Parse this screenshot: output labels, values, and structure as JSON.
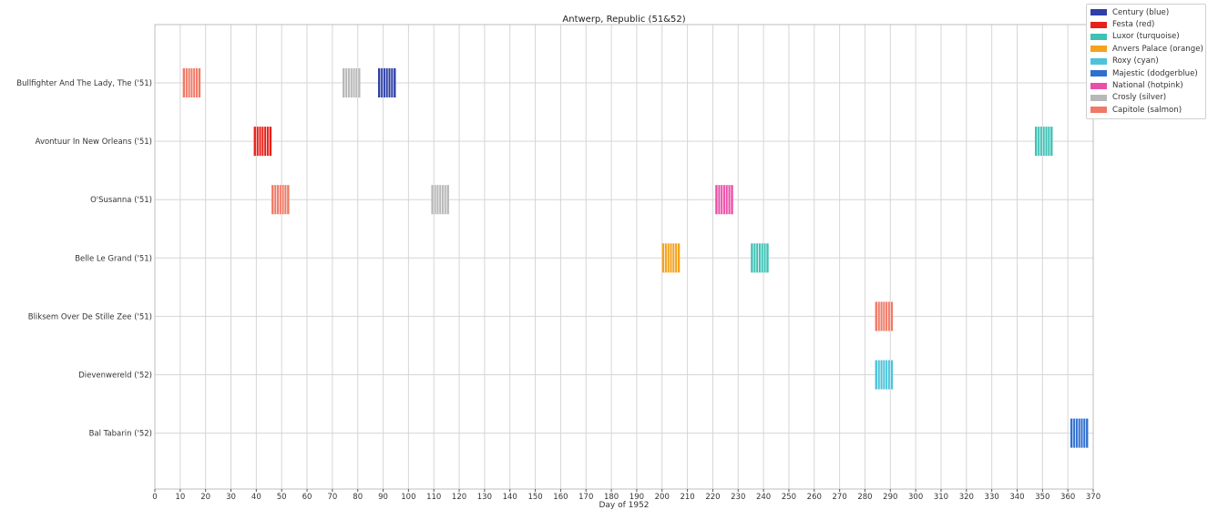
{
  "chart_data": {
    "type": "gantt",
    "title": "Antwerp, Republic (51&52)",
    "xlabel": "Day of 1952",
    "ylabel": "",
    "xlim": [
      0,
      370
    ],
    "xticks": [
      0,
      10,
      20,
      30,
      40,
      50,
      60,
      70,
      80,
      90,
      100,
      110,
      120,
      130,
      140,
      150,
      160,
      170,
      180,
      190,
      200,
      210,
      220,
      230,
      240,
      250,
      260,
      270,
      280,
      290,
      300,
      310,
      320,
      330,
      340,
      350,
      360,
      370
    ],
    "grid": true,
    "legend_position": "top-right",
    "theaters": [
      {
        "name": "Century (blue)",
        "color": "#2e3fa6"
      },
      {
        "name": "Festa (red)",
        "color": "#e8201a"
      },
      {
        "name": "Luxor (turquoise)",
        "color": "#3fc1b5"
      },
      {
        "name": "Anvers Palace (orange)",
        "color": "#f5a21d"
      },
      {
        "name": "Roxy (cyan)",
        "color": "#4cc3db"
      },
      {
        "name": "Majestic (dodgerblue)",
        "color": "#2f6fd0"
      },
      {
        "name": "National (hotpink)",
        "color": "#ea4fa8"
      },
      {
        "name": "Crosly (silver)",
        "color": "#b8b8b8"
      },
      {
        "name": "Capitole (salmon)",
        "color": "#f07a66"
      }
    ],
    "categories": [
      "Bullfighter And The Lady, The ('51)",
      "Avontuur In New Orleans ('51)",
      "O'Susanna ('51)",
      "Belle Le Grand ('51)",
      "Bliksem Over De Stille Zee ('51)",
      "Dievenwereld ('52)",
      "Bal Tabarin ('52)"
    ],
    "bars": [
      {
        "film": 0,
        "start": 11,
        "end": 18,
        "theater": "Capitole (salmon)"
      },
      {
        "film": 0,
        "start": 74,
        "end": 81,
        "theater": "Crosly (silver)"
      },
      {
        "film": 0,
        "start": 88,
        "end": 95,
        "theater": "Century (blue)"
      },
      {
        "film": 1,
        "start": 39,
        "end": 46,
        "theater": "Festa (red)"
      },
      {
        "film": 1,
        "start": 347,
        "end": 354,
        "theater": "Luxor (turquoise)"
      },
      {
        "film": 2,
        "start": 46,
        "end": 53,
        "theater": "Capitole (salmon)"
      },
      {
        "film": 2,
        "start": 109,
        "end": 116,
        "theater": "Crosly (silver)"
      },
      {
        "film": 2,
        "start": 221,
        "end": 228,
        "theater": "National (hotpink)"
      },
      {
        "film": 3,
        "start": 200,
        "end": 207,
        "theater": "Anvers Palace (orange)"
      },
      {
        "film": 3,
        "start": 235,
        "end": 242,
        "theater": "Luxor (turquoise)"
      },
      {
        "film": 4,
        "start": 284,
        "end": 291,
        "theater": "Capitole (salmon)"
      },
      {
        "film": 5,
        "start": 284,
        "end": 291,
        "theater": "Roxy (cyan)"
      },
      {
        "film": 6,
        "start": 361,
        "end": 368,
        "theater": "Majestic (dodgerblue)"
      }
    ]
  }
}
